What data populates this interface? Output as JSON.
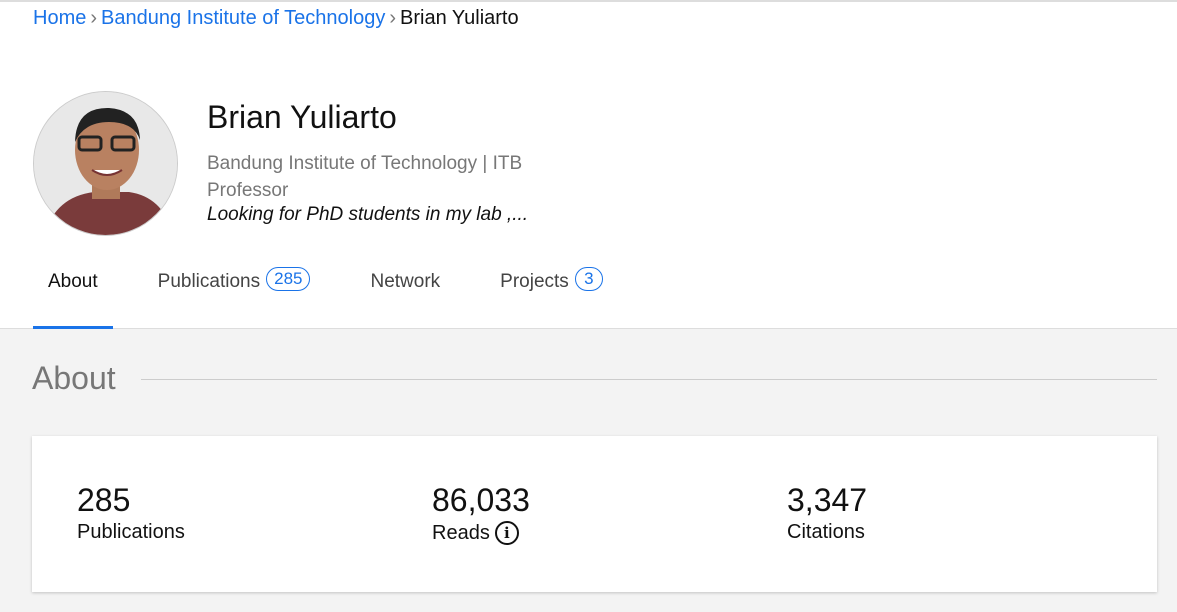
{
  "breadcrumb": [
    "Home",
    "Bandung Institute of Technology",
    "Brian Yuliarto"
  ],
  "profile": {
    "name": "Brian Yuliarto",
    "institution": "Bandung Institute of Technology | ITB",
    "position": "Professor",
    "bio": "Looking for PhD students in my lab ,..."
  },
  "tabs": [
    {
      "label": "About"
    },
    {
      "label": "Publications",
      "count": "285"
    },
    {
      "label": "Network"
    },
    {
      "label": "Projects",
      "count": "3"
    }
  ],
  "section": {
    "title": "About"
  },
  "stats": [
    {
      "value": "285",
      "label": "Publications"
    },
    {
      "value": "86,033",
      "label": "Reads"
    },
    {
      "value": "3,347",
      "label": "Citations"
    }
  ],
  "colors": {
    "accent": "#1a73e8"
  }
}
